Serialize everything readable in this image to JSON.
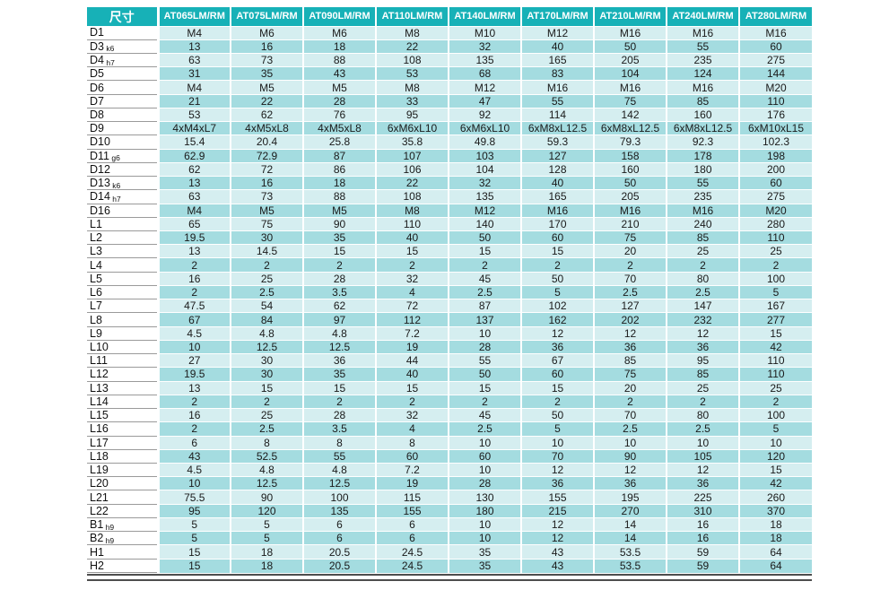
{
  "colors": {
    "header_bg": "#17b1b7",
    "header_text": "#ffffff",
    "row_light": "#d5eef0",
    "row_dark": "#a4dce0",
    "label_underline": "#9a9a9a",
    "bottom_rule": "#4d4d4d"
  },
  "table": {
    "corner_header": "尺寸",
    "columns": [
      "AT065LM/RM",
      "AT075LM/RM",
      "AT090LM/RM",
      "AT110LM/RM",
      "AT140LM/RM",
      "AT170LM/RM",
      "AT210LM/RM",
      "AT240LM/RM",
      "AT280LM/RM"
    ],
    "rows": [
      {
        "label": "D1",
        "sub": "",
        "values": [
          "M4",
          "M6",
          "M6",
          "M8",
          "M10",
          "M12",
          "M16",
          "M16",
          "M16"
        ]
      },
      {
        "label": "D3",
        "sub": "k6",
        "values": [
          13,
          16,
          18,
          22,
          32,
          40,
          50,
          55,
          60
        ]
      },
      {
        "label": "D4",
        "sub": "h7",
        "values": [
          63,
          73,
          88,
          108,
          135,
          165,
          205,
          235,
          275
        ]
      },
      {
        "label": "D5",
        "sub": "",
        "values": [
          31,
          35,
          43,
          53,
          68,
          83,
          104,
          124,
          144
        ]
      },
      {
        "label": "D6",
        "sub": "",
        "values": [
          "M4",
          "M5",
          "M5",
          "M8",
          "M12",
          "M16",
          "M16",
          "M16",
          "M20"
        ]
      },
      {
        "label": "D7",
        "sub": "",
        "values": [
          21,
          22,
          28,
          33,
          47,
          55,
          75,
          85,
          110
        ]
      },
      {
        "label": "D8",
        "sub": "",
        "values": [
          53,
          62,
          76,
          95,
          92,
          114,
          142,
          160,
          176
        ]
      },
      {
        "label": "D9",
        "sub": "",
        "values": [
          "4xM4xL7",
          "4xM5xL8",
          "4xM5xL8",
          "6xM6xL10",
          "6xM6xL10",
          "6xM8xL12.5",
          "6xM8xL12.5",
          "6xM8xL12.5",
          "6xM10xL15"
        ]
      },
      {
        "label": "D10",
        "sub": "",
        "values": [
          15.4,
          20.4,
          25.8,
          35.8,
          49.8,
          59.3,
          79.3,
          92.3,
          102.3
        ]
      },
      {
        "label": "D11",
        "sub": "g6",
        "values": [
          62.9,
          72.9,
          87,
          107,
          103,
          127,
          158,
          178,
          198
        ]
      },
      {
        "label": "D12",
        "sub": "",
        "values": [
          62,
          72,
          86,
          106,
          104,
          128,
          160,
          180,
          200
        ]
      },
      {
        "label": "D13",
        "sub": "k6",
        "values": [
          13,
          16,
          18,
          22,
          32,
          40,
          50,
          55,
          60
        ]
      },
      {
        "label": "D14",
        "sub": "h7",
        "values": [
          63,
          73,
          88,
          108,
          135,
          165,
          205,
          235,
          275
        ]
      },
      {
        "label": "D16",
        "sub": "",
        "values": [
          "M4",
          "M5",
          "M5",
          "M8",
          "M12",
          "M16",
          "M16",
          "M16",
          "M20"
        ]
      },
      {
        "label": "L1",
        "sub": "",
        "values": [
          65,
          75,
          90,
          110,
          140,
          170,
          210,
          240,
          280
        ]
      },
      {
        "label": "L2",
        "sub": "",
        "values": [
          19.5,
          30,
          35,
          40,
          50,
          60,
          75,
          85,
          110
        ]
      },
      {
        "label": "L3",
        "sub": "",
        "values": [
          13,
          14.5,
          15,
          15,
          15,
          15,
          20,
          25,
          25
        ]
      },
      {
        "label": "L4",
        "sub": "",
        "values": [
          2,
          2,
          2,
          2,
          2,
          2,
          2,
          2,
          2
        ]
      },
      {
        "label": "L5",
        "sub": "",
        "values": [
          16,
          25,
          28,
          32,
          45,
          50,
          70,
          80,
          100
        ]
      },
      {
        "label": "L6",
        "sub": "",
        "values": [
          2,
          2.5,
          3.5,
          4,
          2.5,
          5,
          2.5,
          2.5,
          5
        ]
      },
      {
        "label": "L7",
        "sub": "",
        "values": [
          47.5,
          54,
          62,
          72,
          87,
          102,
          127,
          147,
          167
        ]
      },
      {
        "label": "L8",
        "sub": "",
        "values": [
          67,
          84,
          97,
          112,
          137,
          162,
          202,
          232,
          277
        ]
      },
      {
        "label": "L9",
        "sub": "",
        "values": [
          4.5,
          4.8,
          4.8,
          7.2,
          10,
          12,
          12,
          12,
          15
        ]
      },
      {
        "label": "L10",
        "sub": "",
        "values": [
          10,
          12.5,
          12.5,
          19,
          28,
          36,
          36,
          36,
          42
        ]
      },
      {
        "label": "L11",
        "sub": "",
        "values": [
          27,
          30,
          36,
          44,
          55,
          67,
          85,
          95,
          110
        ]
      },
      {
        "label": "L12",
        "sub": "",
        "values": [
          19.5,
          30,
          35,
          40,
          50,
          60,
          75,
          85,
          110
        ]
      },
      {
        "label": "L13",
        "sub": "",
        "values": [
          13,
          15,
          15,
          15,
          15,
          15,
          20,
          25,
          25
        ]
      },
      {
        "label": "L14",
        "sub": "",
        "values": [
          2,
          2,
          2,
          2,
          2,
          2,
          2,
          2,
          2
        ]
      },
      {
        "label": "L15",
        "sub": "",
        "values": [
          16,
          25,
          28,
          32,
          45,
          50,
          70,
          80,
          100
        ]
      },
      {
        "label": "L16",
        "sub": "",
        "values": [
          2,
          2.5,
          3.5,
          4,
          2.5,
          5,
          2.5,
          2.5,
          5
        ]
      },
      {
        "label": "L17",
        "sub": "",
        "values": [
          6,
          8,
          8,
          8,
          10,
          10,
          10,
          10,
          10
        ]
      },
      {
        "label": "L18",
        "sub": "",
        "values": [
          43,
          52.5,
          55,
          60,
          60,
          70,
          90,
          105,
          120
        ]
      },
      {
        "label": "L19",
        "sub": "",
        "values": [
          4.5,
          4.8,
          4.8,
          7.2,
          10,
          12,
          12,
          12,
          15
        ]
      },
      {
        "label": "L20",
        "sub": "",
        "values": [
          10,
          12.5,
          12.5,
          19,
          28,
          36,
          36,
          36,
          42
        ]
      },
      {
        "label": "L21",
        "sub": "",
        "values": [
          75.5,
          90,
          100,
          115,
          130,
          155,
          195,
          225,
          260
        ]
      },
      {
        "label": "L22",
        "sub": "",
        "values": [
          95,
          120,
          135,
          155,
          180,
          215,
          270,
          310,
          370
        ]
      },
      {
        "label": "B1",
        "sub": "h9",
        "values": [
          5,
          5,
          6,
          6,
          10,
          12,
          14,
          16,
          18
        ]
      },
      {
        "label": "B2",
        "sub": "h9",
        "values": [
          5,
          5,
          6,
          6,
          10,
          12,
          14,
          16,
          18
        ]
      },
      {
        "label": "H1",
        "sub": "",
        "values": [
          15,
          18,
          20.5,
          24.5,
          35,
          43,
          53.5,
          59,
          64
        ]
      },
      {
        "label": "H2",
        "sub": "",
        "values": [
          15,
          18,
          20.5,
          24.5,
          35,
          43,
          53.5,
          59,
          64
        ]
      }
    ]
  }
}
